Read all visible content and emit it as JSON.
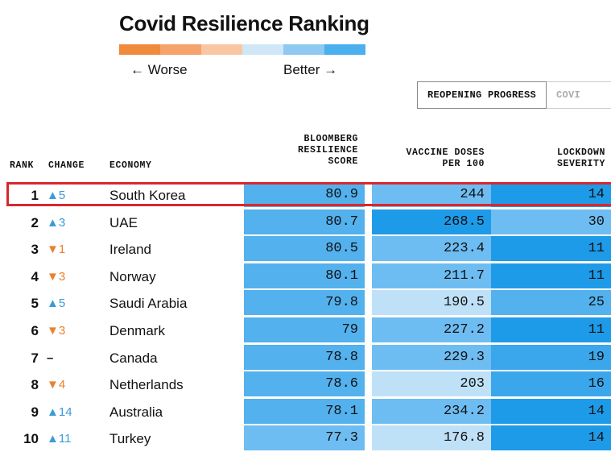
{
  "title": "Covid Resilience Ranking",
  "legend": {
    "worse_label": "← Worse",
    "better_label": "Better →",
    "colors": [
      "#f08a3c",
      "#f5a26b",
      "#f9c6a4",
      "#cfe7f7",
      "#8ec9f1",
      "#4ab0ee"
    ]
  },
  "tabs": [
    {
      "label": "REOPENING PROGRESS"
    },
    {
      "label": "COVI"
    }
  ],
  "headers": {
    "rank": "RANK",
    "change": "CHANGE",
    "economy": "ECONOMY",
    "score_l1": "BLOOMBERG",
    "score_l2": "RESILIENCE",
    "score_l3": "SCORE",
    "vaccine_l1": "VACCINE DOSES",
    "vaccine_l2": "PER 100",
    "lockdown_l1": "LOCKDOWN",
    "lockdown_l2": "SEVERITY"
  },
  "colors": {
    "up": "#3a9bd9",
    "down": "#e8812f",
    "highlight": "#d9272e"
  },
  "rows": [
    {
      "rank": "1",
      "change": "▲5",
      "dir": "up",
      "economy": "South Korea",
      "score": "80.9",
      "vaccine": "244",
      "lockdown": "14",
      "c1": "#53b1ee",
      "c2": "#6ebdf2",
      "c3": "#1e9be8"
    },
    {
      "rank": "2",
      "change": "▲3",
      "dir": "up",
      "economy": "UAE",
      "score": "80.7",
      "vaccine": "268.5",
      "lockdown": "30",
      "c1": "#53b1ee",
      "c2": "#1e9be8",
      "c3": "#6ebdf2"
    },
    {
      "rank": "3",
      "change": "▼1",
      "dir": "down",
      "economy": "Ireland",
      "score": "80.5",
      "vaccine": "223.4",
      "lockdown": "11",
      "c1": "#53b1ee",
      "c2": "#6ebdf2",
      "c3": "#1e9be8"
    },
    {
      "rank": "4",
      "change": "▼3",
      "dir": "down",
      "economy": "Norway",
      "score": "80.1",
      "vaccine": "211.7",
      "lockdown": "11",
      "c1": "#53b1ee",
      "c2": "#6ebdf2",
      "c3": "#1e9be8"
    },
    {
      "rank": "5",
      "change": "▲5",
      "dir": "up",
      "economy": "Saudi Arabia",
      "score": "79.8",
      "vaccine": "190.5",
      "lockdown": "25",
      "c1": "#53b1ee",
      "c2": "#bfe1f8",
      "c3": "#53b1ee"
    },
    {
      "rank": "6",
      "change": "▼3",
      "dir": "down",
      "economy": "Denmark",
      "score": "79",
      "vaccine": "227.2",
      "lockdown": "11",
      "c1": "#53b1ee",
      "c2": "#6ebdf2",
      "c3": "#1e9be8"
    },
    {
      "rank": "7",
      "change": "–",
      "dir": "none",
      "economy": "Canada",
      "score": "78.8",
      "vaccine": "229.3",
      "lockdown": "19",
      "c1": "#53b1ee",
      "c2": "#6ebdf2",
      "c3": "#3aa6ec"
    },
    {
      "rank": "8",
      "change": "▼4",
      "dir": "down",
      "economy": "Netherlands",
      "score": "78.6",
      "vaccine": "203",
      "lockdown": "16",
      "c1": "#53b1ee",
      "c2": "#bfe1f8",
      "c3": "#3aa6ec"
    },
    {
      "rank": "9",
      "change": "▲14",
      "dir": "up",
      "economy": "Australia",
      "score": "78.1",
      "vaccine": "234.2",
      "lockdown": "14",
      "c1": "#53b1ee",
      "c2": "#6ebdf2",
      "c3": "#1e9be8"
    },
    {
      "rank": "10",
      "change": "▲11",
      "dir": "up",
      "economy": "Turkey",
      "score": "77.3",
      "vaccine": "176.8",
      "lockdown": "14",
      "c1": "#6ebdf2",
      "c2": "#bfe1f8",
      "c3": "#1e9be8"
    }
  ]
}
